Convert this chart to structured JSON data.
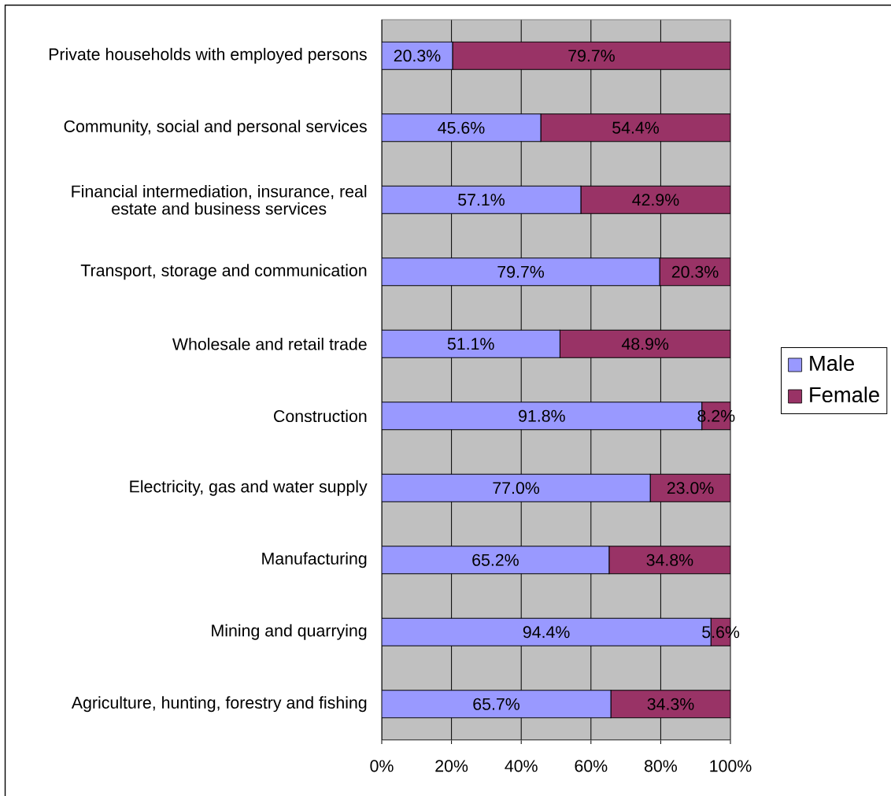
{
  "chart_data": {
    "type": "bar",
    "orientation": "horizontal",
    "stacked": true,
    "categories": [
      "Private households with employed persons",
      "Community, social and personal services",
      "Financial intermediation, insurance, real estate and business services",
      "Transport, storage and communication",
      "Wholesale and retail trade",
      "Construction",
      "Electricity, gas and water supply",
      "Manufacturing",
      "Mining and quarrying",
      "Agriculture, hunting, forestry and fishing"
    ],
    "series": [
      {
        "name": "Male",
        "color": "#9999ff",
        "values": [
          20.3,
          45.6,
          57.1,
          79.7,
          51.1,
          91.8,
          77.0,
          65.2,
          94.4,
          65.7
        ],
        "value_labels": [
          "20.3%",
          "45.6%",
          "57.1%",
          "79.7%",
          "51.1%",
          "91.8%",
          "77.0%",
          "65.2%",
          "94.4%",
          "65.7%"
        ]
      },
      {
        "name": "Female",
        "color": "#993366",
        "values": [
          79.7,
          54.4,
          42.9,
          20.3,
          48.9,
          8.2,
          23.0,
          34.8,
          5.6,
          34.3
        ],
        "value_labels": [
          "79.7%",
          "54.4%",
          "42.9%",
          "20.3%",
          "48.9%",
          "8.2%",
          "23.0%",
          "34.8%",
          "5.6%",
          "34.3%"
        ]
      }
    ],
    "xlim": [
      0,
      100
    ],
    "xticks": [
      {
        "value": 0,
        "label": "0%"
      },
      {
        "value": 20,
        "label": "20%"
      },
      {
        "value": 40,
        "label": "40%"
      },
      {
        "value": 60,
        "label": "60%"
      },
      {
        "value": 80,
        "label": "80%"
      },
      {
        "value": 100,
        "label": "100%"
      }
    ],
    "grid": "x",
    "legend": "right"
  }
}
